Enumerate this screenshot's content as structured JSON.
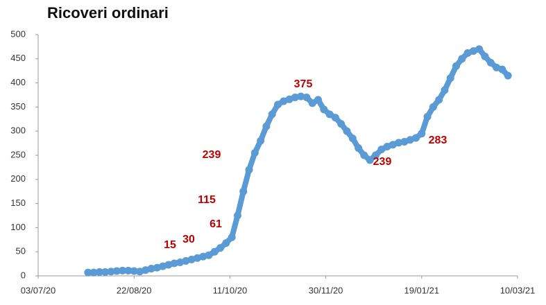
{
  "chart_data": {
    "type": "line",
    "title": "Ricoveri ordinari",
    "x": [
      "2020-07-29",
      "2020-08-01",
      "2020-08-04",
      "2020-08-07",
      "2020-08-10",
      "2020-08-13",
      "2020-08-16",
      "2020-08-19",
      "2020-08-22",
      "2020-08-25",
      "2020-08-28",
      "2020-08-31",
      "2020-09-03",
      "2020-09-06",
      "2020-09-09",
      "2020-09-12",
      "2020-09-15",
      "2020-09-18",
      "2020-09-21",
      "2020-09-24",
      "2020-09-27",
      "2020-09-30",
      "2020-10-03",
      "2020-10-06",
      "2020-10-09",
      "2020-10-12",
      "2020-10-15",
      "2020-10-18",
      "2020-10-21",
      "2020-10-24",
      "2020-10-27",
      "2020-10-30",
      "2020-11-02",
      "2020-11-05",
      "2020-11-08",
      "2020-11-11",
      "2020-11-14",
      "2020-11-17",
      "2020-11-20",
      "2020-11-23",
      "2020-11-26",
      "2020-11-29",
      "2020-12-02",
      "2020-12-05",
      "2020-12-08",
      "2020-12-11",
      "2020-12-14",
      "2020-12-17",
      "2020-12-20",
      "2020-12-23",
      "2020-12-26",
      "2020-12-29",
      "2021-01-01",
      "2021-01-04",
      "2021-01-07",
      "2021-01-10",
      "2021-01-13",
      "2021-01-16",
      "2021-01-19",
      "2021-01-22",
      "2021-01-25",
      "2021-01-28",
      "2021-01-31",
      "2021-02-03",
      "2021-02-06",
      "2021-02-09",
      "2021-02-12",
      "2021-02-15",
      "2021-02-18",
      "2021-02-21",
      "2021-02-24",
      "2021-02-27",
      "2021-03-02",
      "2021-03-05"
    ],
    "series": [
      {
        "color": "#5b9bd5",
        "values": [
          7,
          7,
          8,
          8,
          9,
          10,
          11,
          11,
          10,
          9,
          12,
          15,
          17,
          20,
          23,
          26,
          28,
          31,
          34,
          37,
          40,
          43,
          50,
          58,
          68,
          80,
          125,
          175,
          220,
          255,
          280,
          310,
          335,
          355,
          362,
          366,
          370,
          372,
          370,
          358,
          365,
          345,
          335,
          328,
          315,
          300,
          285,
          265,
          250,
          240,
          250,
          262,
          268,
          272,
          276,
          278,
          282,
          286,
          295,
          330,
          350,
          365,
          385,
          410,
          435,
          450,
          462,
          466,
          470,
          455,
          442,
          432,
          428,
          415
        ]
      }
    ],
    "xlim": [
      "2020-07-03",
      "2021-03-10"
    ],
    "xticks": [
      {
        "value": "2020-07-03",
        "label": "03/07/20"
      },
      {
        "value": "2020-08-22",
        "label": "22/08/20"
      },
      {
        "value": "2020-10-11",
        "label": "11/10/20"
      },
      {
        "value": "2020-11-30",
        "label": "30/11/20"
      },
      {
        "value": "2021-01-19",
        "label": "19/01/21"
      },
      {
        "value": "2021-03-10",
        "label": "10/03/21"
      }
    ],
    "ylim": [
      0,
      500
    ],
    "yticks": [
      0,
      50,
      100,
      150,
      200,
      250,
      300,
      350,
      400,
      450,
      500
    ],
    "annotations": [
      "15",
      "30",
      "61",
      "115",
      "239",
      "375",
      "239",
      "283"
    ],
    "annotation_color": "#c00000"
  }
}
